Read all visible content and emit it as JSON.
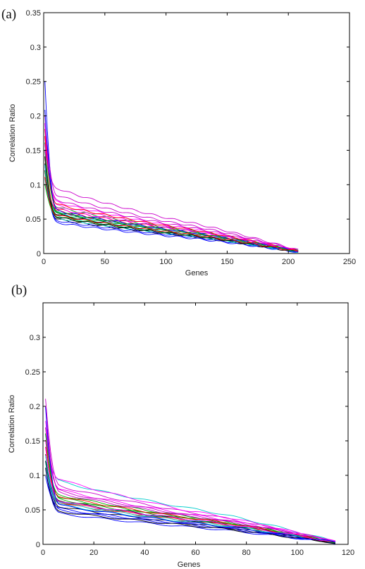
{
  "chart_data": [
    {
      "type": "line",
      "panel_label": "(a)",
      "xlabel": "Genes",
      "ylabel": "Correlation Ratio",
      "xlim": [
        0,
        250
      ],
      "ylim": [
        0,
        0.35
      ],
      "xticks": [
        0,
        50,
        100,
        150,
        200,
        250
      ],
      "yticks": [
        0,
        0.05,
        0.1,
        0.15,
        0.2,
        0.25,
        0.3,
        0.35
      ],
      "ytick_labels": [
        "0",
        "0.05",
        "0.1",
        "0.15",
        "0.2",
        "0.25",
        "0.3",
        "0.35"
      ],
      "grid": false,
      "n_points": 208,
      "series_note": "many overlapping colored curves, each a sorted (descending) correlation ratio vs gene rank",
      "series": [
        {
          "color": "#0000ff",
          "start": 0.25,
          "knee": 0.06,
          "mid": 0.034,
          "end": 0.003
        },
        {
          "color": "#ff0000",
          "start": 0.18,
          "knee": 0.065,
          "mid": 0.036,
          "end": 0.004
        },
        {
          "color": "#00aa00",
          "start": 0.15,
          "knee": 0.058,
          "mid": 0.032,
          "end": 0.003
        },
        {
          "color": "#00cccc",
          "start": 0.14,
          "knee": 0.055,
          "mid": 0.03,
          "end": 0.003
        },
        {
          "color": "#cc00cc",
          "start": 0.2,
          "knee": 0.085,
          "mid": 0.045,
          "end": 0.005
        },
        {
          "color": "#000000",
          "start": 0.13,
          "knee": 0.05,
          "mid": 0.028,
          "end": 0.002
        },
        {
          "color": "#ff00ff",
          "start": 0.17,
          "knee": 0.075,
          "mid": 0.04,
          "end": 0.004
        },
        {
          "color": "#0000ff",
          "start": 0.12,
          "knee": 0.048,
          "mid": 0.027,
          "end": 0.002
        },
        {
          "color": "#00aa00",
          "start": 0.16,
          "knee": 0.068,
          "mid": 0.037,
          "end": 0.004
        },
        {
          "color": "#ff0000",
          "start": 0.14,
          "knee": 0.062,
          "mid": 0.033,
          "end": 0.003
        },
        {
          "color": "#00cccc",
          "start": 0.11,
          "knee": 0.052,
          "mid": 0.029,
          "end": 0.002
        },
        {
          "color": "#cc00cc",
          "start": 0.15,
          "knee": 0.095,
          "mid": 0.05,
          "end": 0.005
        },
        {
          "color": "#000000",
          "start": 0.12,
          "knee": 0.057,
          "mid": 0.031,
          "end": 0.003
        },
        {
          "color": "#ff00ff",
          "start": 0.19,
          "knee": 0.07,
          "mid": 0.038,
          "end": 0.004
        },
        {
          "color": "#0000ff",
          "start": 0.13,
          "knee": 0.045,
          "mid": 0.025,
          "end": 0.002
        },
        {
          "color": "#00aa00",
          "start": 0.1,
          "knee": 0.054,
          "mid": 0.03,
          "end": 0.003
        },
        {
          "color": "#ff0000",
          "start": 0.17,
          "knee": 0.072,
          "mid": 0.039,
          "end": 0.004
        },
        {
          "color": "#00cccc",
          "start": 0.13,
          "knee": 0.06,
          "mid": 0.033,
          "end": 0.003
        },
        {
          "color": "#cc00cc",
          "start": 0.16,
          "knee": 0.078,
          "mid": 0.042,
          "end": 0.004
        },
        {
          "color": "#000000",
          "start": 0.14,
          "knee": 0.053,
          "mid": 0.029,
          "end": 0.003
        },
        {
          "color": "#ff00ff",
          "start": 0.12,
          "knee": 0.066,
          "mid": 0.036,
          "end": 0.004
        },
        {
          "color": "#0000ff",
          "start": 0.21,
          "knee": 0.063,
          "mid": 0.034,
          "end": 0.003
        },
        {
          "color": "#00aa00",
          "start": 0.12,
          "knee": 0.061,
          "mid": 0.034,
          "end": 0.003
        },
        {
          "color": "#ff0000",
          "start": 0.11,
          "knee": 0.056,
          "mid": 0.031,
          "end": 0.003
        }
      ]
    },
    {
      "type": "line",
      "panel_label": "(b)",
      "xlabel": "Genes",
      "ylabel": "Correlation Ratio",
      "xlim": [
        0,
        120
      ],
      "ylim": [
        0,
        0.35
      ],
      "xticks": [
        0,
        20,
        40,
        60,
        80,
        100,
        120
      ],
      "yticks": [
        0,
        0.05,
        0.1,
        0.15,
        0.2,
        0.25,
        0.3
      ],
      "ytick_labels": [
        "0",
        "0.05",
        "0.1",
        "0.15",
        "0.2",
        "0.25",
        "0.3"
      ],
      "grid": false,
      "n_points": 115,
      "series_note": "many overlapping colored curves, each a sorted (descending) correlation ratio vs gene rank",
      "series": [
        {
          "color": "#0000ff",
          "start": 0.12,
          "knee": 0.05,
          "mid": 0.028,
          "end": 0.002
        },
        {
          "color": "#ff0000",
          "start": 0.15,
          "knee": 0.062,
          "mid": 0.034,
          "end": 0.003
        },
        {
          "color": "#00aa00",
          "start": 0.17,
          "knee": 0.068,
          "mid": 0.038,
          "end": 0.003
        },
        {
          "color": "#00cccc",
          "start": 0.16,
          "knee": 0.092,
          "mid": 0.052,
          "end": 0.004
        },
        {
          "color": "#cc00cc",
          "start": 0.21,
          "knee": 0.085,
          "mid": 0.046,
          "end": 0.004
        },
        {
          "color": "#000000",
          "start": 0.13,
          "knee": 0.055,
          "mid": 0.03,
          "end": 0.002
        },
        {
          "color": "#ff00ff",
          "start": 0.18,
          "knee": 0.08,
          "mid": 0.043,
          "end": 0.004
        },
        {
          "color": "#0000ff",
          "start": 0.11,
          "knee": 0.045,
          "mid": 0.025,
          "end": 0.002
        },
        {
          "color": "#00aa00",
          "start": 0.14,
          "knee": 0.072,
          "mid": 0.04,
          "end": 0.003
        },
        {
          "color": "#ff0000",
          "start": 0.13,
          "knee": 0.06,
          "mid": 0.033,
          "end": 0.003
        },
        {
          "color": "#00cccc",
          "start": 0.12,
          "knee": 0.058,
          "mid": 0.032,
          "end": 0.003
        },
        {
          "color": "#cc00cc",
          "start": 0.2,
          "knee": 0.075,
          "mid": 0.04,
          "end": 0.004
        },
        {
          "color": "#000000",
          "start": 0.12,
          "knee": 0.064,
          "mid": 0.035,
          "end": 0.003
        },
        {
          "color": "#ff00ff",
          "start": 0.15,
          "knee": 0.095,
          "mid": 0.048,
          "end": 0.004
        },
        {
          "color": "#0000ff",
          "start": 0.1,
          "knee": 0.052,
          "mid": 0.029,
          "end": 0.002
        },
        {
          "color": "#00aa00",
          "start": 0.16,
          "knee": 0.066,
          "mid": 0.037,
          "end": 0.003
        },
        {
          "color": "#ff0000",
          "start": 0.14,
          "knee": 0.07,
          "mid": 0.038,
          "end": 0.003
        },
        {
          "color": "#00cccc",
          "start": 0.13,
          "knee": 0.061,
          "mid": 0.034,
          "end": 0.003
        },
        {
          "color": "#cc00cc",
          "start": 0.17,
          "knee": 0.078,
          "mid": 0.042,
          "end": 0.004
        },
        {
          "color": "#000000",
          "start": 0.11,
          "knee": 0.048,
          "mid": 0.027,
          "end": 0.002
        },
        {
          "color": "#ff00ff",
          "start": 0.14,
          "knee": 0.063,
          "mid": 0.036,
          "end": 0.003
        },
        {
          "color": "#0000ff",
          "start": 0.2,
          "knee": 0.057,
          "mid": 0.031,
          "end": 0.003
        }
      ]
    }
  ]
}
